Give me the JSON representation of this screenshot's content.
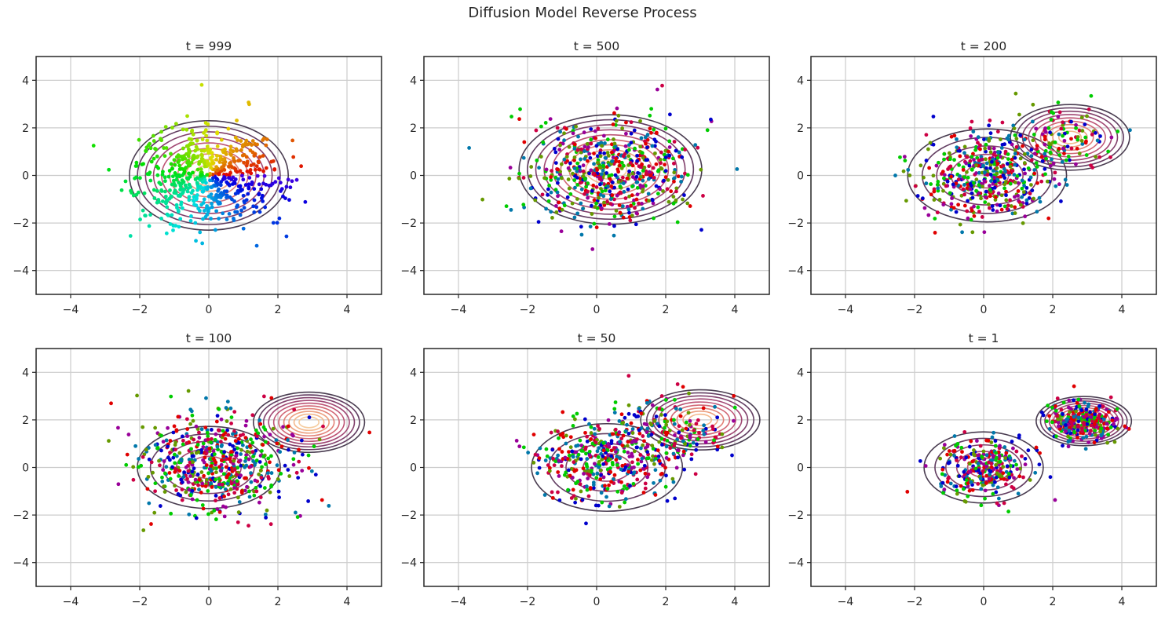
{
  "figure": {
    "title": "Diffusion Model Reverse Process"
  },
  "chart_data": {
    "type": "scatter",
    "title": "Diffusion Model Reverse Process",
    "layout": "2 rows x 3 columns",
    "xlim": [
      -5,
      5
    ],
    "ylim": [
      -5,
      5
    ],
    "xticks": [
      -4,
      -2,
      0,
      2,
      4
    ],
    "yticks": [
      -4,
      -2,
      0,
      2,
      4
    ],
    "xtick_labels": [
      "−4",
      "−2",
      "0",
      "2",
      "4"
    ],
    "ytick_labels": [
      "−4",
      "−2",
      "0",
      "2",
      "4"
    ],
    "grid": true,
    "points_per_panel": 600,
    "overlay": "KDE density contour lines (dark outer → light orange inner)",
    "point_coloring": "color mapped from initial noise angle: red / green / blue hue wheel",
    "panels": [
      {
        "title": "t = 999",
        "t": 999,
        "color_mode": "hue-by-angle",
        "clusters": [
          {
            "cx": 0.0,
            "cy": 0.0,
            "sx": 1.0,
            "sy": 1.0,
            "weight": 1.0
          }
        ],
        "contours": [
          {
            "cx": 0.0,
            "cy": 0.0,
            "sx": 1.0,
            "sy": 1.0,
            "levels": 9
          }
        ]
      },
      {
        "title": "t = 500",
        "t": 500,
        "color_mode": "mixed",
        "clusters": [
          {
            "cx": 0.3,
            "cy": 0.2,
            "sx": 1.2,
            "sy": 1.05,
            "weight": 1.0
          }
        ],
        "contours": [
          {
            "cx": 0.4,
            "cy": 0.25,
            "sx": 1.15,
            "sy": 1.0,
            "levels": 10
          }
        ]
      },
      {
        "title": "t = 200",
        "t": 200,
        "color_mode": "mixed",
        "clusters": [
          {
            "cx": 0.1,
            "cy": 0.0,
            "sx": 0.95,
            "sy": 0.9,
            "weight": 0.82
          },
          {
            "cx": 2.4,
            "cy": 1.6,
            "sx": 0.7,
            "sy": 0.6,
            "weight": 0.18
          }
        ],
        "contours": [
          {
            "cx": 0.1,
            "cy": 0.0,
            "sx": 1.0,
            "sy": 0.85,
            "levels": 5
          },
          {
            "cx": 2.5,
            "cy": 1.6,
            "sx": 0.75,
            "sy": 0.6,
            "levels": 9
          }
        ]
      },
      {
        "title": "t = 100",
        "t": 100,
        "color_mode": "mixed",
        "clusters": [
          {
            "cx": 0.3,
            "cy": 0.2,
            "sx": 1.15,
            "sy": 1.0,
            "weight": 1.0
          }
        ],
        "contours": [
          {
            "cx": 0.0,
            "cy": 0.0,
            "sx": 0.9,
            "sy": 0.75,
            "levels": 5
          },
          {
            "cx": 2.9,
            "cy": 1.9,
            "sx": 0.7,
            "sy": 0.55,
            "levels": 10
          }
        ]
      },
      {
        "title": "t = 50",
        "t": 50,
        "color_mode": "mixed",
        "clusters": [
          {
            "cx": 0.2,
            "cy": 0.2,
            "sx": 0.95,
            "sy": 0.85,
            "weight": 0.6
          },
          {
            "cx": 2.0,
            "cy": 1.5,
            "sx": 0.8,
            "sy": 0.75,
            "weight": 0.4
          }
        ],
        "contours": [
          {
            "cx": 0.3,
            "cy": 0.0,
            "sx": 0.95,
            "sy": 0.8,
            "levels": 4
          },
          {
            "cx": 3.0,
            "cy": 2.0,
            "sx": 0.75,
            "sy": 0.55,
            "levels": 9
          }
        ]
      },
      {
        "title": "t = 1",
        "t": 1,
        "color_mode": "mixed",
        "clusters": [
          {
            "cx": 0.0,
            "cy": 0.0,
            "sx": 0.65,
            "sy": 0.6,
            "weight": 0.5
          },
          {
            "cx": 2.9,
            "cy": 1.9,
            "sx": 0.5,
            "sy": 0.4,
            "weight": 0.5
          }
        ],
        "contours": [
          {
            "cx": 0.0,
            "cy": 0.0,
            "sx": 0.75,
            "sy": 0.65,
            "levels": 5
          },
          {
            "cx": 2.9,
            "cy": 1.95,
            "sx": 0.6,
            "sy": 0.45,
            "levels": 10
          }
        ]
      }
    ],
    "colors": {
      "axes_edge": "#262626",
      "grid": "#cccccc",
      "point_palette": [
        "#e00000",
        "#00cc00",
        "#0000cc",
        "#990099",
        "#cc0044",
        "#669900",
        "#0077aa"
      ],
      "contour_palette": [
        "#3f3247",
        "#5a3358",
        "#7a3563",
        "#9c3d6b",
        "#b94b6e",
        "#d05f6e",
        "#e07a70",
        "#eb9a78",
        "#f2b487",
        "#f6c99a"
      ]
    }
  }
}
